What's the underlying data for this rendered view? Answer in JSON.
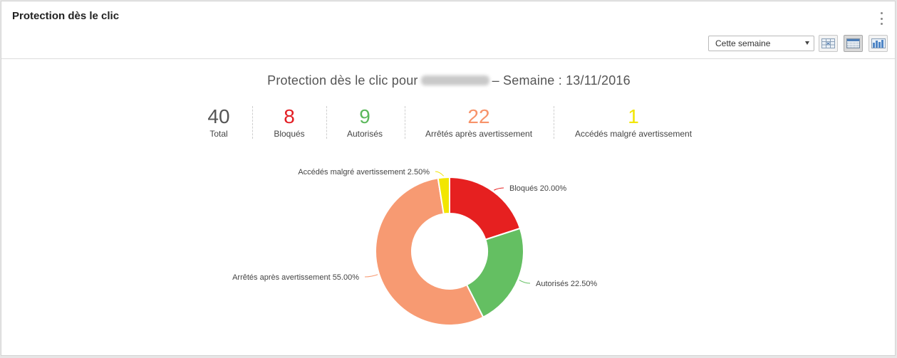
{
  "panel": {
    "title": "Protection dès le clic",
    "period_select": {
      "value": "Cette semaine"
    }
  },
  "report": {
    "title_prefix": "Protection dès le clic pour",
    "title_suffix": "– Semaine : 13/11/2016"
  },
  "stats": [
    {
      "value": "40",
      "label": "Total",
      "color": "#555555"
    },
    {
      "value": "8",
      "label": "Bloqués",
      "color": "#e31e24"
    },
    {
      "value": "9",
      "label": "Autorisés",
      "color": "#5cb85c"
    },
    {
      "value": "22",
      "label": "Arrêtés après avertissement",
      "color": "#f7936a"
    },
    {
      "value": "1",
      "label": "Accédés malgré avertissement",
      "color": "#f2e600"
    }
  ],
  "chart_data": {
    "type": "pie",
    "donut": true,
    "slices": [
      {
        "label": "Bloqués",
        "value": 20.0,
        "display": "Bloqués 20.00%",
        "color": "#e62020"
      },
      {
        "label": "Autorisés",
        "value": 22.5,
        "display": "Autorisés 22.50%",
        "color": "#64bf62"
      },
      {
        "label": "Arrêtés après avertissement",
        "value": 55.0,
        "display": "Arrêtés après avertissement 55.00%",
        "color": "#f79a72"
      },
      {
        "label": "Accédés malgré avertissement",
        "value": 2.5,
        "display": "Accédés malgré avertissement 2.50%",
        "color": "#f2e600"
      }
    ]
  }
}
